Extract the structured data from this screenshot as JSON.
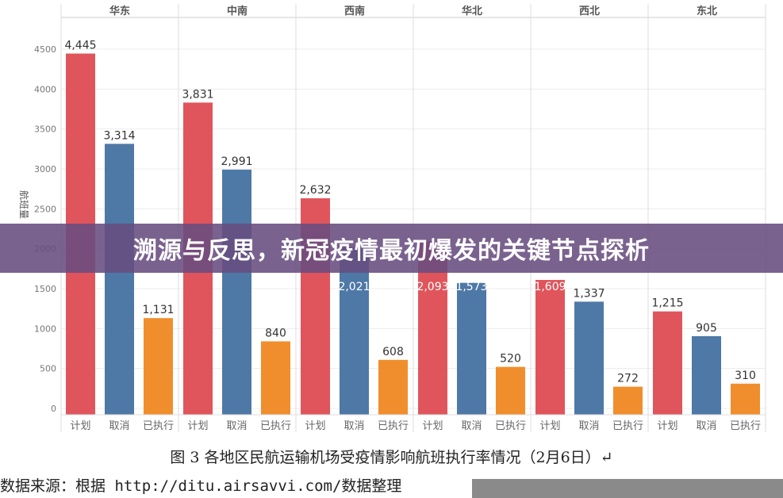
{
  "chart_data": {
    "type": "bar",
    "ylabel": "航班量",
    "ylim": [
      0,
      4500
    ],
    "yticks": [
      0,
      500,
      1000,
      1500,
      2000,
      2500,
      3000,
      3500,
      4000,
      4500
    ],
    "grid": true,
    "panels": [
      "华东",
      "中南",
      "西南",
      "华北",
      "西北",
      "东北"
    ],
    "categories": [
      "计划",
      "取消",
      "已执行"
    ],
    "colors": [
      "#e0555c",
      "#4e78a6",
      "#f08e2e"
    ],
    "values": [
      [
        4445,
        3314,
        1131
      ],
      [
        3831,
        2991,
        840
      ],
      [
        2632,
        2021,
        608
      ],
      [
        2093,
        1573,
        520
      ],
      [
        1609,
        1337,
        272
      ],
      [
        1215,
        905,
        310
      ]
    ],
    "labels": [
      [
        "4,445",
        "3,314",
        "1,131"
      ],
      [
        "3,831",
        "2,991",
        "840"
      ],
      [
        "2,632",
        "2,021",
        "608"
      ],
      [
        "2,093",
        "1,573",
        "520"
      ],
      [
        "1,609",
        "1,337",
        "272"
      ],
      [
        "1,215",
        "905",
        "310"
      ]
    ]
  },
  "banner": {
    "title": "溯源与反思，新冠疫情最初爆发的关键节点探析"
  },
  "caption": "图 3 各地区民航运输机场受疫情影响航班执行率情况（2月6日）↵",
  "source": "数据来源：根据 http://ditu.airsavvi.com/数据整理"
}
